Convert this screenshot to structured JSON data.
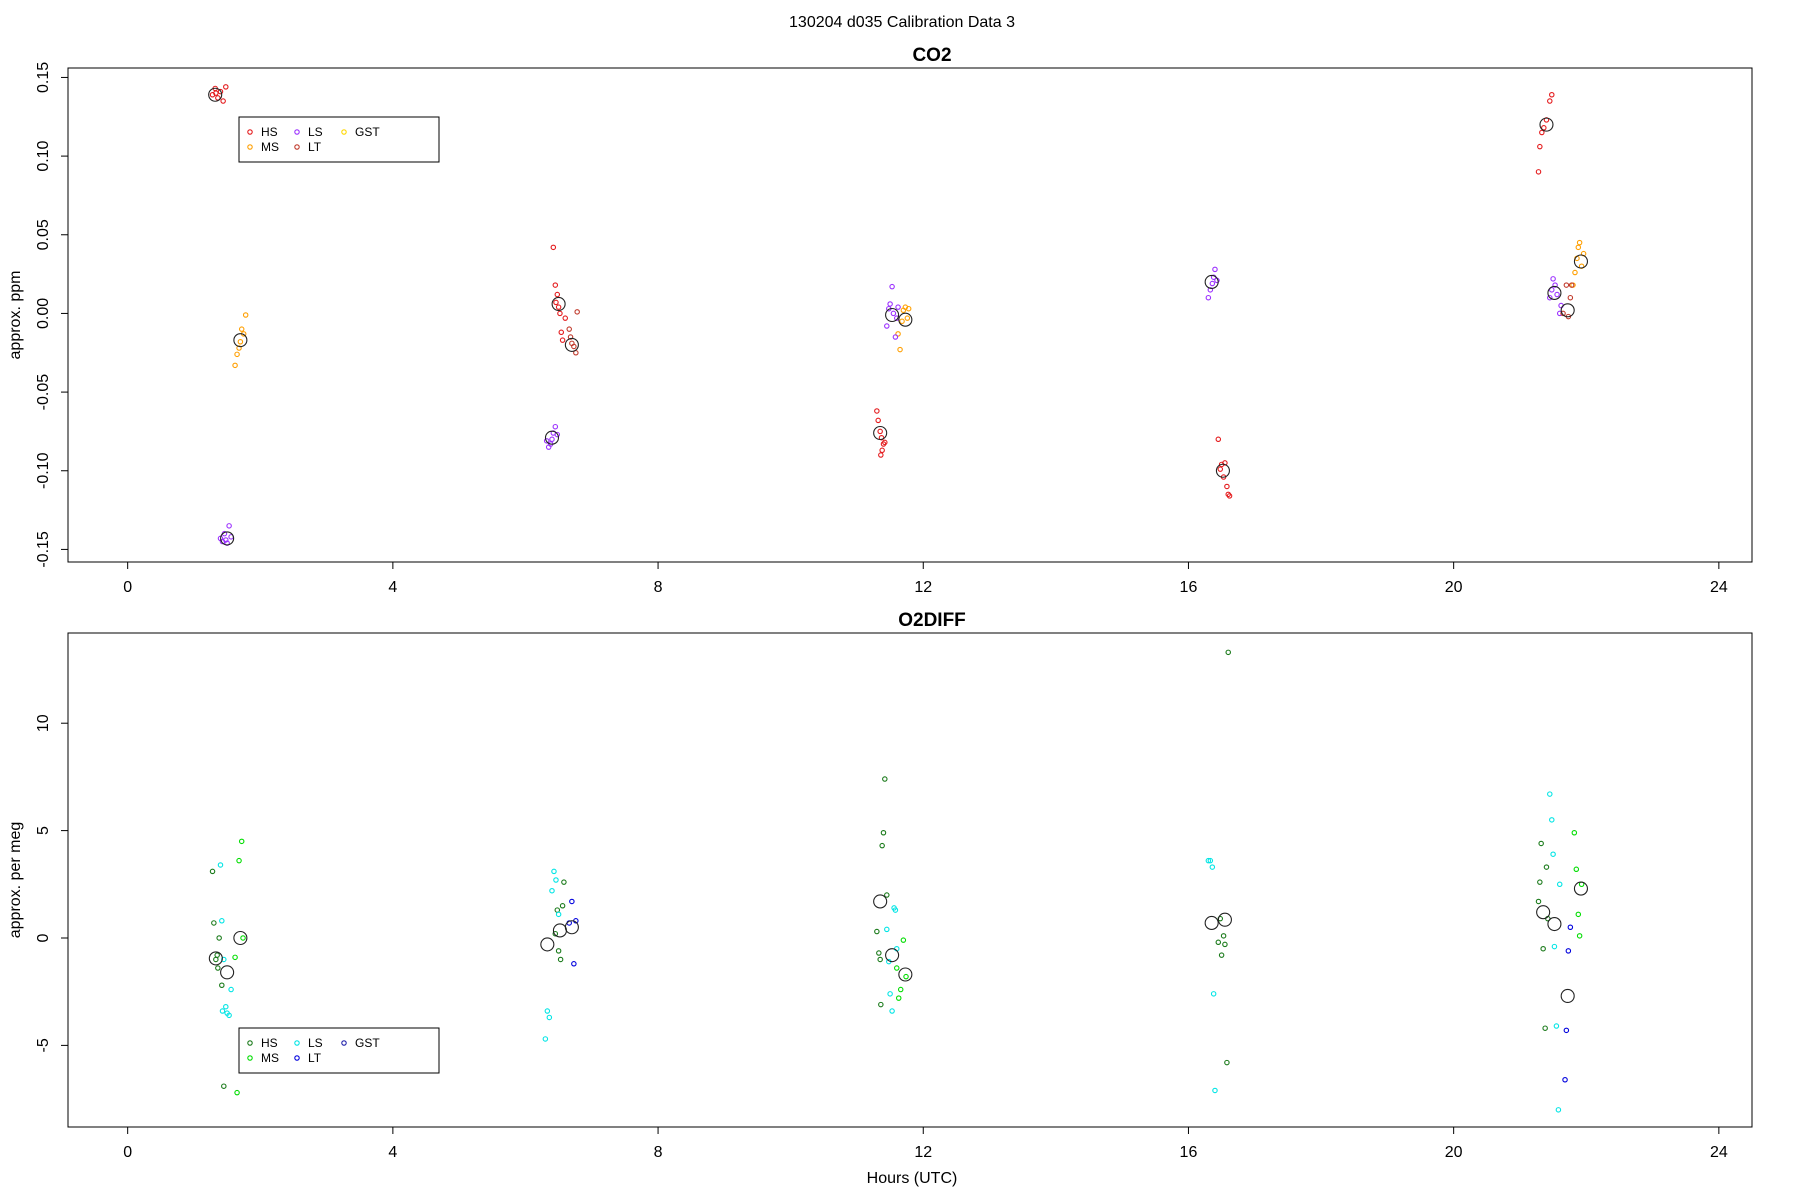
{
  "figure_title": "130204   d035   Calibration Data 3",
  "chart_data": [
    {
      "type": "scatter",
      "title": "CO2",
      "xlabel": "",
      "ylabel": "approx. ppm",
      "xlim": [
        -0.9,
        24.5
      ],
      "ylim": [
        -0.158,
        0.156
      ],
      "xticks": [
        0,
        4,
        8,
        12,
        16,
        20,
        24
      ],
      "yticks": [
        -0.15,
        -0.1,
        -0.05,
        0.0,
        0.05,
        0.1,
        0.15
      ],
      "ytick_labels": [
        "-0.15",
        "-0.10",
        "-0.05",
        "0.00",
        "0.05",
        "0.10",
        "0.15"
      ],
      "grid": false,
      "legend_placement": "upper-left",
      "legend": [
        {
          "label": "HS",
          "color": "#e41a1c"
        },
        {
          "label": "MS",
          "color": "#ff9f00"
        },
        {
          "label": "LS",
          "color": "#9b30ff"
        },
        {
          "label": "LT",
          "color": "#c0392b"
        },
        {
          "label": "GST",
          "color": "#ffd700"
        }
      ],
      "series": [
        {
          "name": "HS",
          "color": "#e41a1c",
          "points": [
            [
              1.28,
              0.139
            ],
            [
              1.32,
              0.143
            ],
            [
              1.36,
              0.137
            ],
            [
              1.4,
              0.141
            ],
            [
              1.44,
              0.135
            ],
            [
              1.48,
              0.144
            ],
            [
              1.33,
              0.14
            ],
            [
              6.42,
              0.042
            ],
            [
              6.45,
              0.018
            ],
            [
              6.48,
              0.012
            ],
            [
              6.5,
              0.004
            ],
            [
              6.52,
              0.0
            ],
            [
              6.54,
              -0.012
            ],
            [
              6.56,
              -0.017
            ],
            [
              6.6,
              -0.003
            ],
            [
              6.46,
              0.007
            ],
            [
              11.3,
              -0.062
            ],
            [
              11.32,
              -0.068
            ],
            [
              11.35,
              -0.075
            ],
            [
              11.37,
              -0.079
            ],
            [
              11.4,
              -0.083
            ],
            [
              11.38,
              -0.087
            ],
            [
              11.36,
              -0.09
            ],
            [
              11.42,
              -0.082
            ],
            [
              16.45,
              -0.08
            ],
            [
              16.5,
              -0.096
            ],
            [
              16.53,
              -0.104
            ],
            [
              16.55,
              -0.095
            ],
            [
              16.58,
              -0.11
            ],
            [
              16.6,
              -0.115
            ],
            [
              16.62,
              -0.116
            ],
            [
              16.48,
              -0.099
            ],
            [
              21.28,
              0.09
            ],
            [
              21.3,
              0.106
            ],
            [
              21.33,
              0.115
            ],
            [
              21.36,
              0.118
            ],
            [
              21.4,
              0.123
            ],
            [
              21.45,
              0.135
            ],
            [
              21.48,
              0.139
            ]
          ]
        },
        {
          "name": "MS",
          "color": "#ff9f00",
          "points": [
            [
              1.62,
              -0.033
            ],
            [
              1.65,
              -0.026
            ],
            [
              1.68,
              -0.022
            ],
            [
              1.72,
              -0.01
            ],
            [
              1.75,
              -0.013
            ],
            [
              1.78,
              -0.001
            ],
            [
              1.7,
              -0.018
            ],
            [
              11.62,
              -0.013
            ],
            [
              11.65,
              -0.023
            ],
            [
              11.68,
              -0.005
            ],
            [
              11.7,
              0.002
            ],
            [
              11.73,
              0.004
            ],
            [
              11.76,
              -0.003
            ],
            [
              11.78,
              0.003
            ],
            [
              21.8,
              0.018
            ],
            [
              21.83,
              0.026
            ],
            [
              21.86,
              0.035
            ],
            [
              21.88,
              0.042
            ],
            [
              21.9,
              0.045
            ],
            [
              21.93,
              0.03
            ],
            [
              21.96,
              0.038
            ]
          ]
        },
        {
          "name": "LS",
          "color": "#9b30ff",
          "points": [
            [
              1.4,
              -0.143
            ],
            [
              1.43,
              -0.145
            ],
            [
              1.46,
              -0.14
            ],
            [
              1.5,
              -0.146
            ],
            [
              1.53,
              -0.135
            ],
            [
              1.56,
              -0.142
            ],
            [
              1.48,
              -0.144
            ],
            [
              6.32,
              -0.081
            ],
            [
              6.35,
              -0.085
            ],
            [
              6.38,
              -0.083
            ],
            [
              6.42,
              -0.076
            ],
            [
              6.45,
              -0.072
            ],
            [
              6.48,
              -0.077
            ],
            [
              6.4,
              -0.08
            ],
            [
              11.45,
              -0.008
            ],
            [
              11.48,
              0.003
            ],
            [
              11.5,
              0.006
            ],
            [
              11.53,
              0.017
            ],
            [
              11.55,
              0.0
            ],
            [
              11.58,
              -0.015
            ],
            [
              11.6,
              -0.003
            ],
            [
              11.62,
              0.004
            ],
            [
              16.3,
              0.01
            ],
            [
              16.33,
              0.015
            ],
            [
              16.36,
              0.019
            ],
            [
              16.38,
              0.023
            ],
            [
              16.4,
              0.028
            ],
            [
              16.43,
              0.021
            ],
            [
              21.45,
              0.01
            ],
            [
              21.48,
              0.015
            ],
            [
              21.5,
              0.022
            ],
            [
              21.53,
              0.018
            ],
            [
              21.56,
              0.012
            ],
            [
              21.6,
              0.0
            ],
            [
              21.62,
              0.005
            ]
          ]
        },
        {
          "name": "LT",
          "color": "#c0392b",
          "points": [
            [
              6.66,
              -0.01
            ],
            [
              6.68,
              -0.015
            ],
            [
              6.7,
              -0.019
            ],
            [
              6.73,
              -0.021
            ],
            [
              6.76,
              -0.025
            ],
            [
              6.78,
              0.001
            ],
            [
              21.65,
              0.0
            ],
            [
              21.7,
              0.018
            ],
            [
              21.73,
              -0.002
            ],
            [
              21.76,
              0.01
            ],
            [
              21.78,
              0.018
            ]
          ]
        }
      ],
      "means": [
        [
          1.32,
          0.139
        ],
        [
          1.5,
          -0.143
        ],
        [
          1.7,
          -0.017
        ],
        [
          6.4,
          -0.079
        ],
        [
          6.5,
          0.006
        ],
        [
          6.7,
          -0.02
        ],
        [
          11.35,
          -0.076
        ],
        [
          11.53,
          -0.001
        ],
        [
          11.73,
          -0.004
        ],
        [
          16.35,
          0.02
        ],
        [
          16.52,
          -0.1
        ],
        [
          21.4,
          0.12
        ],
        [
          21.52,
          0.013
        ],
        [
          21.72,
          0.002
        ],
        [
          21.92,
          0.033
        ]
      ]
    },
    {
      "type": "scatter",
      "title": "O2DIFF",
      "xlabel": "Hours (UTC)",
      "ylabel": "approx. per meg",
      "xlim": [
        -0.9,
        24.5
      ],
      "ylim": [
        -8.8,
        14.2
      ],
      "xticks": [
        0,
        4,
        8,
        12,
        16,
        20,
        24
      ],
      "yticks": [
        -5,
        0,
        5,
        10
      ],
      "ytick_labels": [
        "-5",
        "0",
        "5",
        "10"
      ],
      "grid": false,
      "legend_placement": "lower-left",
      "legend": [
        {
          "label": "HS",
          "color": "#1a7a1a"
        },
        {
          "label": "MS",
          "color": "#00dd00"
        },
        {
          "label": "LS",
          "color": "#00e5e5"
        },
        {
          "label": "LT",
          "color": "#0000dd"
        },
        {
          "label": "GST",
          "color": "#2020aa"
        }
      ],
      "series": [
        {
          "name": "HS",
          "color": "#1a7a1a",
          "points": [
            [
              1.28,
              3.1
            ],
            [
              1.3,
              0.7
            ],
            [
              1.33,
              -1.0
            ],
            [
              1.36,
              -1.4
            ],
            [
              1.38,
              0.0
            ],
            [
              1.42,
              -2.2
            ],
            [
              1.45,
              -6.9
            ],
            [
              1.35,
              -0.8
            ],
            [
              6.45,
              0.2
            ],
            [
              6.5,
              -0.6
            ],
            [
              6.53,
              -1.0
            ],
            [
              6.56,
              1.5
            ],
            [
              6.58,
              2.6
            ],
            [
              6.48,
              1.3
            ],
            [
              11.3,
              0.3
            ],
            [
              11.33,
              -0.7
            ],
            [
              11.36,
              -3.1
            ],
            [
              11.38,
              4.3
            ],
            [
              11.4,
              4.9
            ],
            [
              11.42,
              7.4
            ],
            [
              11.45,
              2.0
            ],
            [
              11.35,
              -1.0
            ],
            [
              16.45,
              -0.2
            ],
            [
              16.5,
              -0.8
            ],
            [
              16.53,
              0.1
            ],
            [
              16.55,
              -0.3
            ],
            [
              16.58,
              -5.8
            ],
            [
              16.6,
              13.3
            ],
            [
              16.48,
              0.9
            ],
            [
              21.28,
              1.7
            ],
            [
              21.3,
              2.6
            ],
            [
              21.32,
              4.4
            ],
            [
              21.35,
              -0.5
            ],
            [
              21.38,
              -4.2
            ],
            [
              21.4,
              3.3
            ],
            [
              21.42,
              0.9
            ]
          ]
        },
        {
          "name": "MS",
          "color": "#00dd00",
          "points": [
            [
              1.62,
              -0.9
            ],
            [
              1.65,
              -7.2
            ],
            [
              1.68,
              3.6
            ],
            [
              1.72,
              4.5
            ],
            [
              1.74,
              0.0
            ],
            [
              11.6,
              -1.4
            ],
            [
              11.63,
              -2.8
            ],
            [
              11.66,
              -2.4
            ],
            [
              11.7,
              -0.1
            ],
            [
              11.74,
              -1.8
            ],
            [
              21.82,
              4.9
            ],
            [
              21.85,
              3.2
            ],
            [
              21.88,
              1.1
            ],
            [
              21.9,
              0.1
            ],
            [
              21.93,
              2.5
            ]
          ]
        },
        {
          "name": "LS",
          "color": "#00e5e5",
          "points": [
            [
              1.4,
              3.4
            ],
            [
              1.42,
              0.8
            ],
            [
              1.45,
              -1.0
            ],
            [
              1.48,
              -3.2
            ],
            [
              1.5,
              -3.5
            ],
            [
              1.53,
              -3.6
            ],
            [
              1.56,
              -2.4
            ],
            [
              1.43,
              -3.4
            ],
            [
              6.3,
              -4.7
            ],
            [
              6.33,
              -3.4
            ],
            [
              6.36,
              -3.7
            ],
            [
              6.4,
              2.2
            ],
            [
              6.43,
              3.1
            ],
            [
              6.46,
              2.7
            ],
            [
              6.5,
              1.1
            ],
            [
              11.45,
              0.4
            ],
            [
              11.48,
              -1.1
            ],
            [
              11.5,
              -2.6
            ],
            [
              11.53,
              -3.4
            ],
            [
              11.56,
              1.4
            ],
            [
              11.58,
              1.3
            ],
            [
              11.6,
              -0.5
            ],
            [
              16.3,
              3.6
            ],
            [
              16.33,
              3.6
            ],
            [
              16.36,
              3.3
            ],
            [
              16.38,
              -2.6
            ],
            [
              16.4,
              -7.1
            ],
            [
              21.45,
              6.7
            ],
            [
              21.48,
              5.5
            ],
            [
              21.5,
              3.9
            ],
            [
              21.52,
              -0.4
            ],
            [
              21.55,
              -4.1
            ],
            [
              21.58,
              -8.0
            ],
            [
              21.6,
              2.5
            ]
          ]
        },
        {
          "name": "LT",
          "color": "#0000dd",
          "points": [
            [
              6.66,
              0.7
            ],
            [
              6.7,
              1.7
            ],
            [
              6.73,
              -1.2
            ],
            [
              6.76,
              0.8
            ],
            [
              21.68,
              -6.6
            ],
            [
              21.7,
              -4.3
            ],
            [
              21.73,
              -0.6
            ],
            [
              21.76,
              0.5
            ]
          ]
        }
      ],
      "means": [
        [
          1.33,
          -0.95
        ],
        [
          1.5,
          -1.6
        ],
        [
          1.7,
          0.0
        ],
        [
          6.33,
          -0.3
        ],
        [
          6.52,
          0.35
        ],
        [
          6.7,
          0.5
        ],
        [
          11.35,
          1.7
        ],
        [
          11.53,
          -0.8
        ],
        [
          11.73,
          -1.7
        ],
        [
          16.35,
          0.7
        ],
        [
          16.55,
          0.85
        ],
        [
          21.35,
          1.2
        ],
        [
          21.52,
          0.65
        ],
        [
          21.72,
          -2.7
        ],
        [
          21.92,
          2.3
        ]
      ]
    }
  ]
}
